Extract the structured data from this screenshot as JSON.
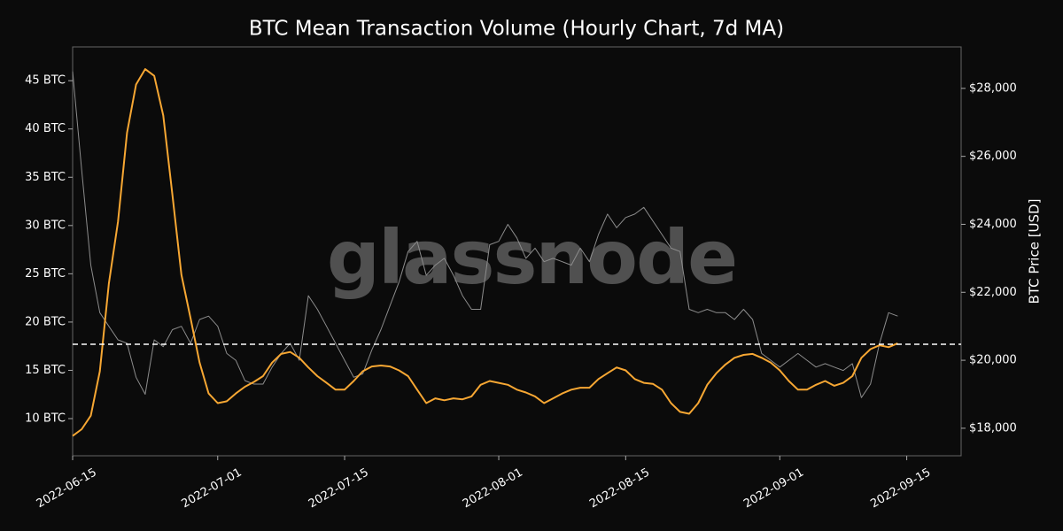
{
  "chart_data": {
    "type": "line",
    "title": "BTC Mean Transaction Volume (Hourly Chart, 7d MA)",
    "y2label": "BTC Price [USD]",
    "watermark": "glassnode",
    "x": [
      "2022-06-15",
      "2022-06-16",
      "2022-06-17",
      "2022-06-18",
      "2022-06-19",
      "2022-06-20",
      "2022-06-21",
      "2022-06-22",
      "2022-06-23",
      "2022-06-24",
      "2022-06-25",
      "2022-06-26",
      "2022-06-27",
      "2022-06-28",
      "2022-06-29",
      "2022-06-30",
      "2022-07-01",
      "2022-07-02",
      "2022-07-03",
      "2022-07-04",
      "2022-07-05",
      "2022-07-06",
      "2022-07-07",
      "2022-07-08",
      "2022-07-09",
      "2022-07-10",
      "2022-07-11",
      "2022-07-12",
      "2022-07-13",
      "2022-07-14",
      "2022-07-15",
      "2022-07-16",
      "2022-07-17",
      "2022-07-18",
      "2022-07-19",
      "2022-07-20",
      "2022-07-21",
      "2022-07-22",
      "2022-07-23",
      "2022-07-24",
      "2022-07-25",
      "2022-07-26",
      "2022-07-27",
      "2022-07-28",
      "2022-07-29",
      "2022-07-30",
      "2022-07-31",
      "2022-08-01",
      "2022-08-02",
      "2022-08-03",
      "2022-08-04",
      "2022-08-05",
      "2022-08-06",
      "2022-08-07",
      "2022-08-08",
      "2022-08-09",
      "2022-08-10",
      "2022-08-11",
      "2022-08-12",
      "2022-08-13",
      "2022-08-14",
      "2022-08-15",
      "2022-08-16",
      "2022-08-17",
      "2022-08-18",
      "2022-08-19",
      "2022-08-20",
      "2022-08-21",
      "2022-08-22",
      "2022-08-23",
      "2022-08-24",
      "2022-08-25",
      "2022-08-26",
      "2022-08-27",
      "2022-08-28",
      "2022-08-29",
      "2022-08-30",
      "2022-08-31",
      "2022-09-01",
      "2022-09-02",
      "2022-09-03",
      "2022-09-04",
      "2022-09-05",
      "2022-09-06",
      "2022-09-07",
      "2022-09-08",
      "2022-09-09",
      "2022-09-10",
      "2022-09-11",
      "2022-09-12",
      "2022-09-13",
      "2022-09-14"
    ],
    "series": [
      {
        "color": "#8c8c8c",
        "axis": "y2",
        "values": [
          28500,
          25600,
          22800,
          21400,
          21000,
          20600,
          20500,
          19500,
          19000,
          20600,
          20400,
          20900,
          21000,
          20500,
          21200,
          21300,
          21000,
          20200,
          20000,
          19400,
          19300,
          19300,
          19800,
          20200,
          20500,
          20000,
          21900,
          21500,
          21000,
          20500,
          20000,
          19500,
          19600,
          20300,
          20900,
          21600,
          22300,
          23200,
          23500,
          22500,
          22800,
          23000,
          22500,
          21900,
          21500,
          21500,
          23400,
          23500,
          24000,
          23600,
          23000,
          23300,
          22900,
          23000,
          22900,
          22800,
          23300,
          22900,
          23700,
          24300,
          23900,
          24200,
          24300,
          24500,
          24100,
          23700,
          23300,
          23200,
          21500,
          21400,
          21500,
          21400,
          21400,
          21200,
          21500,
          21200,
          20200,
          20000,
          19800,
          20000,
          20200,
          20000,
          19800,
          19900,
          19800,
          19700,
          19900,
          18900,
          19300,
          20500,
          21400,
          21300
        ]
      },
      {
        "color": "#f7a733",
        "values": [
          8.2,
          8.9,
          10.3,
          14.9,
          24,
          30.4,
          39.6,
          44.6,
          46.2,
          45.5,
          41.4,
          33.2,
          24.9,
          20.4,
          15.8,
          12.6,
          11.6,
          11.8,
          12.6,
          13.3,
          13.8,
          14.4,
          15.8,
          16.7,
          16.9,
          16.3,
          15.3,
          14.4,
          13.7,
          13.0,
          13.0,
          13.9,
          14.9,
          15.4,
          15.5,
          15.4,
          15.0,
          14.4,
          13.0,
          11.6,
          12.1,
          11.9,
          12.1,
          12.0,
          12.3,
          13.5,
          13.9,
          13.7,
          13.5,
          13.0,
          12.7,
          12.3,
          11.6,
          12.1,
          12.6,
          13.0,
          13.2,
          13.2,
          14.1,
          14.7,
          15.3,
          15.0,
          14.1,
          13.7,
          13.6,
          13.0,
          11.6,
          10.7,
          10.5,
          11.6,
          13.5,
          14.7,
          15.6,
          16.3,
          16.6,
          16.7,
          16.3,
          15.8,
          15.0,
          13.9,
          13.0,
          13.0,
          13.5,
          13.9,
          13.4,
          13.7,
          14.4,
          16.3,
          17.2,
          17.6,
          17.4,
          17.8
        ]
      }
    ],
    "hline": 17.7,
    "xlim": [
      "2022-06-15",
      "2022-09-21"
    ],
    "xticks": [
      "2022-06-15",
      "2022-07-01",
      "2022-07-15",
      "2022-08-01",
      "2022-08-15",
      "2022-09-01",
      "2022-09-15"
    ],
    "ylim": [
      6.15,
      48.5
    ],
    "yticks": [
      {
        "value": 10,
        "label": "10 BTC"
      },
      {
        "value": 15,
        "label": "15 BTC"
      },
      {
        "value": 20,
        "label": "20 BTC"
      },
      {
        "value": 25,
        "label": "25 BTC"
      },
      {
        "value": 30,
        "label": "30 BTC"
      },
      {
        "value": 35,
        "label": "35 BTC"
      },
      {
        "value": 40,
        "label": "40 BTC"
      },
      {
        "value": 45,
        "label": "45 BTC"
      }
    ],
    "y2lim": [
      17190,
      29220
    ],
    "y2ticks": [
      {
        "value": 18000,
        "label": "$18,000"
      },
      {
        "value": 20000,
        "label": "$20,000"
      },
      {
        "value": 22000,
        "label": "$22,000"
      },
      {
        "value": 24000,
        "label": "$24,000"
      },
      {
        "value": 26000,
        "label": "$26,000"
      },
      {
        "value": 28000,
        "label": "$28,000"
      }
    ]
  }
}
